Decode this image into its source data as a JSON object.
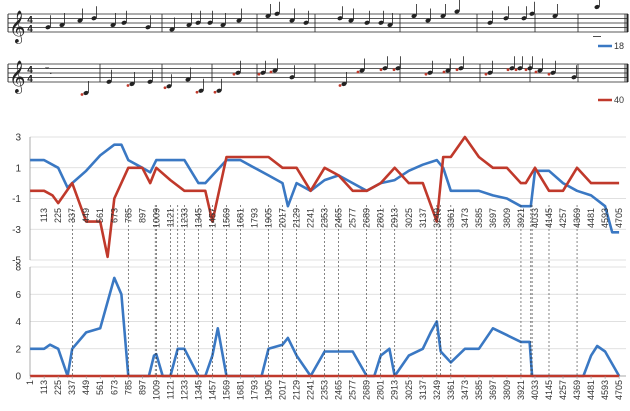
{
  "score": {
    "staff1": {
      "time_signature": [
        "4",
        "4"
      ],
      "legend_label": "18",
      "legend_color": "#3a78c3"
    },
    "staff2": {
      "time_signature": [
        "4",
        "4"
      ],
      "legend_label": "40",
      "legend_color": "#c0392b"
    }
  },
  "chart_data": [
    {
      "type": "line",
      "ylim": [
        -5,
        3
      ],
      "y_ticks": [
        "3",
        "1",
        "-1",
        "-3",
        "-5"
      ],
      "grid": true,
      "x_tick_labels": [
        "1",
        "113",
        "225",
        "337",
        "449",
        "561",
        "673",
        "785",
        "897",
        "1009",
        "1121",
        "1233",
        "1345",
        "1457",
        "1569",
        "1681",
        "1793",
        "1905",
        "2017",
        "2129",
        "2241",
        "2353",
        "2465",
        "2577",
        "2689",
        "2801",
        "2913",
        "3025",
        "3137",
        "3249",
        "3361",
        "3473",
        "3585",
        "3697",
        "3809",
        "3921",
        "4033",
        "4145",
        "4257",
        "4369",
        "4481",
        "4593",
        "4705"
      ],
      "series": [
        {
          "name": "18",
          "color": "#3a78c3",
          "x": [
            1,
            113,
            225,
            300,
            337,
            449,
            561,
            673,
            730,
            785,
            897,
            960,
            1009,
            1121,
            1233,
            1345,
            1400,
            1457,
            1569,
            1681,
            1793,
            1905,
            2017,
            2060,
            2129,
            2241,
            2353,
            2465,
            2577,
            2689,
            2801,
            2913,
            3025,
            3137,
            3249,
            3300,
            3361,
            3473,
            3585,
            3697,
            3809,
            3921,
            4000,
            4033,
            4145,
            4257,
            4369,
            4481,
            4593,
            4650,
            4705
          ],
          "y": [
            1.5,
            1.5,
            1.0,
            -0.3,
            0.0,
            0.8,
            1.8,
            2.5,
            2.5,
            1.5,
            1.0,
            0.7,
            1.5,
            1.5,
            1.5,
            0.0,
            0.0,
            0.5,
            1.5,
            1.5,
            1.0,
            0.5,
            0.0,
            -1.5,
            0.0,
            -0.5,
            0.2,
            0.5,
            0.0,
            -0.5,
            0.0,
            0.2,
            0.8,
            1.2,
            1.5,
            1.0,
            -0.5,
            -0.5,
            -0.5,
            -0.8,
            -1.0,
            -1.5,
            -1.5,
            0.8,
            0.8,
            0.0,
            -0.5,
            -0.8,
            -1.5,
            -3.2,
            -3.2
          ]
        },
        {
          "name": "40",
          "color": "#c0392b",
          "x": [
            1,
            113,
            180,
            225,
            337,
            449,
            561,
            620,
            673,
            785,
            897,
            960,
            1009,
            1121,
            1233,
            1345,
            1400,
            1457,
            1569,
            1681,
            1793,
            1905,
            2017,
            2129,
            2241,
            2353,
            2465,
            2577,
            2689,
            2801,
            2913,
            3025,
            3137,
            3249,
            3300,
            3361,
            3473,
            3585,
            3697,
            3809,
            3921,
            3960,
            4033,
            4145,
            4257,
            4369,
            4481,
            4593,
            4705
          ],
          "y": [
            -0.5,
            -0.5,
            -0.8,
            -1.3,
            0.0,
            -2.5,
            -2.5,
            -4.8,
            -1.0,
            1.0,
            1.0,
            0.0,
            1.0,
            0.2,
            -0.5,
            -0.5,
            -0.5,
            -2.5,
            1.7,
            1.7,
            1.7,
            1.7,
            1.0,
            1.0,
            -0.5,
            1.0,
            0.5,
            -0.5,
            -0.5,
            0.0,
            1.0,
            0.0,
            0.0,
            -2.5,
            1.7,
            1.7,
            3.0,
            1.7,
            1.0,
            1.0,
            0.0,
            0.0,
            1.0,
            -0.5,
            -0.5,
            1.0,
            0.0,
            0.0,
            0.0
          ]
        }
      ]
    },
    {
      "type": "line",
      "ylim": [
        0,
        8
      ],
      "y_ticks": [
        "8",
        "6",
        "4",
        "2",
        "0"
      ],
      "grid": true,
      "x_tick_labels": [
        "1",
        "113",
        "225",
        "337",
        "449",
        "561",
        "673",
        "785",
        "897",
        "1009",
        "1121",
        "1233",
        "1345",
        "1457",
        "1569",
        "1681",
        "1793",
        "1905",
        "2017",
        "2129",
        "2241",
        "2353",
        "2465",
        "2577",
        "2689",
        "2801",
        "2913",
        "3025",
        "3137",
        "3249",
        "3361",
        "3473",
        "3585",
        "3697",
        "3809",
        "3921",
        "4033",
        "4145",
        "4257",
        "4369",
        "4481",
        "4593",
        "4705"
      ],
      "series": [
        {
          "color": "#3a78c3",
          "x": [
            1,
            113,
            160,
            225,
            300,
            337,
            449,
            561,
            673,
            730,
            785,
            950,
            990,
            1009,
            1060,
            1121,
            1180,
            1233,
            1345,
            1400,
            1457,
            1500,
            1569,
            1681,
            1793,
            1850,
            1905,
            2017,
            2060,
            2129,
            2241,
            2353,
            2465,
            2577,
            2689,
            2750,
            2801,
            2870,
            2913,
            3025,
            3137,
            3200,
            3249,
            3280,
            3361,
            3473,
            3585,
            3697,
            3809,
            3921,
            3990,
            4010,
            4030,
            4145,
            4257,
            4369,
            4420,
            4481,
            4530,
            4593,
            4705
          ],
          "y": [
            2.0,
            2.0,
            2.3,
            2.0,
            0.0,
            2.0,
            3.2,
            3.5,
            7.2,
            6.0,
            0.0,
            0.0,
            1.5,
            1.6,
            0.0,
            0.0,
            2.0,
            2.0,
            0.0,
            0.0,
            1.5,
            3.5,
            0.0,
            0.0,
            0.0,
            0.0,
            2.0,
            2.3,
            2.8,
            1.5,
            0.0,
            1.8,
            1.8,
            1.8,
            0.0,
            0.0,
            1.5,
            2.0,
            0.0,
            1.5,
            2.0,
            3.2,
            4.0,
            1.8,
            1.0,
            2.0,
            2.0,
            3.5,
            3.0,
            2.5,
            2.5,
            0.0,
            0.0,
            0.0,
            0.0,
            0.0,
            0.0,
            1.5,
            2.2,
            1.8,
            0.0
          ]
        },
        {
          "color": "#c0392b",
          "x": [
            1,
            4705
          ],
          "y": [
            0,
            0
          ]
        }
      ]
    }
  ]
}
